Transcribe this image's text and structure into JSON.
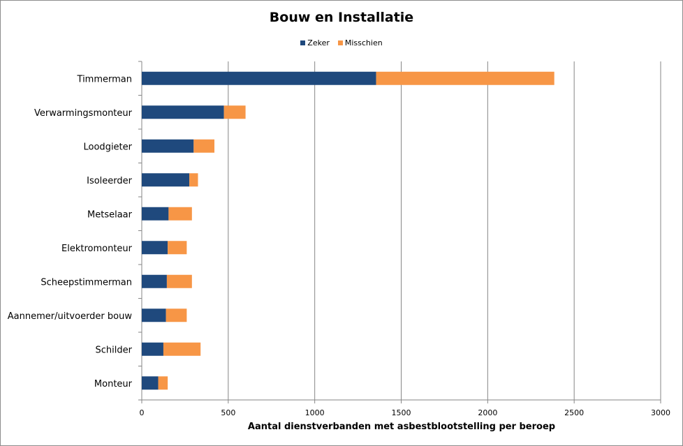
{
  "chart_data": {
    "type": "bar",
    "orientation": "horizontal",
    "stacked": true,
    "title": "Bouw en Installatie",
    "xlabel": "Aantal dienstverbanden met asbestblootstelling per beroep",
    "ylabel": "",
    "categories": [
      "Timmerman",
      "Verwarmingsmonteur",
      "Loodgieter",
      "Isoleerder",
      "Metselaar",
      "Elektromonteur",
      "Scheepstimmerman",
      "Aannemer/uitvoerder bouw",
      "Schilder",
      "Monteur"
    ],
    "series": [
      {
        "name": "Zeker",
        "color": "#1f497d",
        "values": [
          1355,
          475,
          300,
          275,
          155,
          150,
          145,
          140,
          125,
          95
        ]
      },
      {
        "name": "Misschien",
        "color": "#f79646",
        "values": [
          1030,
          125,
          120,
          50,
          135,
          110,
          145,
          120,
          215,
          55
        ]
      }
    ],
    "xlim": [
      0,
      3000
    ],
    "xticks": [
      "0",
      "500",
      "1000",
      "1500",
      "2000",
      "2500",
      "3000"
    ],
    "xtick_values": [
      0,
      500,
      1000,
      1500,
      2000,
      2500,
      3000
    ],
    "grid": true,
    "legend_position": "top"
  }
}
